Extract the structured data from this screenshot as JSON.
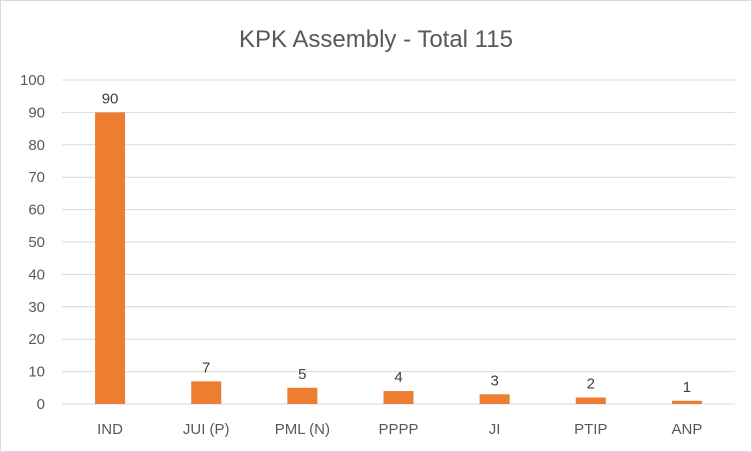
{
  "chart_data": {
    "type": "bar",
    "title": "KPK Assembly - Total 115",
    "categories": [
      "IND",
      "JUI (P)",
      "PML (N)",
      "PPPP",
      "JI",
      "PTIP",
      "ANP"
    ],
    "values": [
      90,
      7,
      5,
      4,
      3,
      2,
      1
    ],
    "data_labels": [
      "90",
      "7",
      "5",
      "4",
      "3",
      "2",
      "1"
    ],
    "xlabel": "",
    "ylabel": "",
    "ylim": [
      0,
      100
    ],
    "yticks": [
      0,
      10,
      20,
      30,
      40,
      50,
      60,
      70,
      80,
      90,
      100
    ],
    "grid": true,
    "legend": "none",
    "bar_color": "#ED7D31"
  }
}
